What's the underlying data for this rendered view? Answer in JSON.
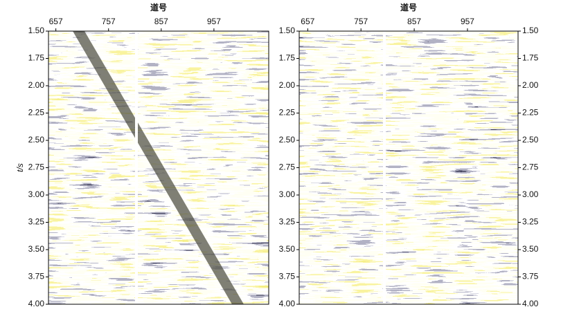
{
  "chart_data": [
    {
      "type": "seismic",
      "xlabel": "道号",
      "ylabel": "t/s",
      "xlim": [
        643,
        1061
      ],
      "xticks": [
        657,
        757,
        857,
        957
      ],
      "ylim": [
        4.0,
        1.5
      ],
      "yticks": [
        {
          "value": 1.5,
          "label": "1.50"
        },
        {
          "value": 1.75,
          "label": "1.75"
        },
        {
          "value": 2.0,
          "label": "2.00"
        },
        {
          "value": 2.25,
          "label": "2.25"
        },
        {
          "value": 2.5,
          "label": "2.50"
        },
        {
          "value": 2.75,
          "label": "2.75"
        },
        {
          "value": 3.0,
          "label": "3.00"
        },
        {
          "value": 3.25,
          "label": "3.25"
        },
        {
          "value": 3.5,
          "label": "3.50"
        },
        {
          "value": 3.75,
          "label": "3.75"
        },
        {
          "value": 4.0,
          "label": "4.00"
        }
      ]
    },
    {
      "type": "seismic",
      "xlabel": "道号",
      "xlim": [
        641,
        1052
      ],
      "xticks": [
        657,
        757,
        857,
        957
      ],
      "ylim": [
        4.0,
        1.5
      ],
      "yticks": [
        {
          "value": 1.5,
          "label": "1.50"
        },
        {
          "value": 1.75,
          "label": "1.75"
        },
        {
          "value": 2.0,
          "label": "2.00"
        },
        {
          "value": 2.25,
          "label": "2.25"
        },
        {
          "value": 2.5,
          "label": "2.50"
        },
        {
          "value": 2.75,
          "label": "2.75"
        },
        {
          "value": 3.0,
          "label": "3.00"
        },
        {
          "value": 3.25,
          "label": "3.25"
        },
        {
          "value": 3.5,
          "label": "3.50"
        },
        {
          "value": 3.75,
          "label": "3.75"
        },
        {
          "value": 4.0,
          "label": "4.00"
        }
      ]
    }
  ]
}
